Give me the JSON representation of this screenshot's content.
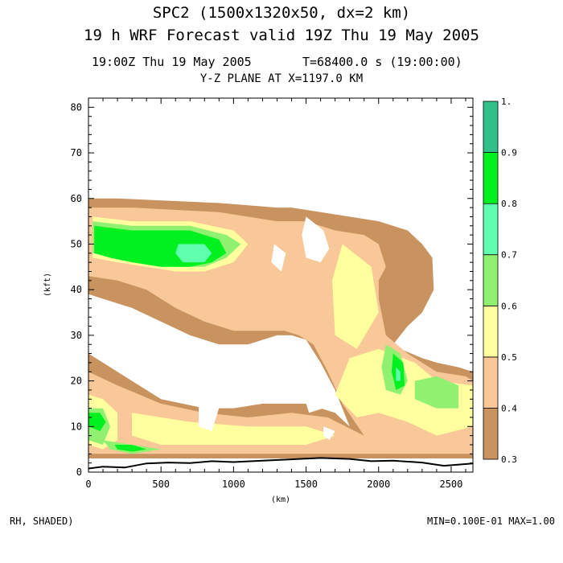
{
  "header": {
    "title_line1": "SPC2 (1500x1320x50, dx=2 km)",
    "title_line2": "19 h  WRF Forecast valid 19Z Thu 19 May 2005",
    "time_label": "19:00Z Thu 19 May 2005",
    "step_label": "T=68400.0 s (19:00:00)",
    "plane_label": "Y-Z PLANE AT X=1197.0 KM"
  },
  "footer": {
    "field_label": "RH, SHADED)",
    "range_label": "MIN=0.100E-01 MAX=1.00"
  },
  "chart_data": {
    "type": "heatmap",
    "field": "RH",
    "xlabel": "(km)",
    "ylabel": "(kft)",
    "xlim": [
      0,
      2650
    ],
    "ylim": [
      0,
      82
    ],
    "x_ticks": [
      0,
      500,
      1000,
      1500,
      2000,
      2500
    ],
    "y_ticks": [
      0,
      10,
      20,
      30,
      40,
      50,
      60,
      70,
      80
    ],
    "colorbar": {
      "levels": [
        0.3,
        0.4,
        0.5,
        0.6,
        0.7,
        0.8,
        0.9,
        1.0
      ],
      "tick_labels": [
        "0.3",
        "0.4",
        "0.5",
        "0.6",
        "0.7",
        "0.8",
        "0.9",
        "1."
      ],
      "colors": [
        "#c8935f",
        "#f8c898",
        "#ffffa0",
        "#90f070",
        "#60ffb0",
        "#00f020",
        "#30c088"
      ]
    },
    "min": 0.01,
    "max": 1.0,
    "terrain_height_kft": [
      [
        0,
        0.8
      ],
      [
        100,
        1.2
      ],
      [
        250,
        1.0
      ],
      [
        400,
        1.9
      ],
      [
        550,
        2.1
      ],
      [
        700,
        2.0
      ],
      [
        850,
        2.4
      ],
      [
        1000,
        2.2
      ],
      [
        1200,
        2.5
      ],
      [
        1400,
        2.8
      ],
      [
        1600,
        3.1
      ],
      [
        1800,
        2.9
      ],
      [
        1950,
        2.4
      ],
      [
        2100,
        2.5
      ],
      [
        2300,
        2.1
      ],
      [
        2450,
        1.4
      ],
      [
        2650,
        1.9
      ]
    ],
    "regions": [
      {
        "level": 0.3,
        "outline": [
          [
            0,
            60
          ],
          [
            200,
            60
          ],
          [
            900,
            59
          ],
          [
            1300,
            58
          ],
          [
            1400,
            58
          ],
          [
            1600,
            57
          ],
          [
            1800,
            56
          ],
          [
            2000,
            55
          ],
          [
            2200,
            53
          ],
          [
            2300,
            50
          ],
          [
            2370,
            47
          ],
          [
            2380,
            40
          ],
          [
            2300,
            35
          ],
          [
            2200,
            32
          ],
          [
            2100,
            28
          ],
          [
            2150,
            27
          ],
          [
            2300,
            25
          ],
          [
            2400,
            24
          ],
          [
            2550,
            23
          ],
          [
            2650,
            22
          ],
          [
            2650,
            3
          ],
          [
            0,
            3
          ],
          [
            0,
            26
          ],
          [
            100,
            24
          ],
          [
            300,
            20
          ],
          [
            500,
            16
          ],
          [
            800,
            14
          ],
          [
            1000,
            14
          ],
          [
            1200,
            15
          ],
          [
            1500,
            15
          ],
          [
            1700,
            13
          ],
          [
            1800,
            10
          ],
          [
            1700,
            18
          ],
          [
            1600,
            24
          ],
          [
            1500,
            29
          ],
          [
            1400,
            30
          ],
          [
            1300,
            30
          ],
          [
            1100,
            28
          ],
          [
            900,
            28
          ],
          [
            700,
            30
          ],
          [
            500,
            33
          ],
          [
            300,
            36
          ],
          [
            100,
            38
          ],
          [
            0,
            39
          ]
        ]
      },
      {
        "level": 0.3,
        "outline": [
          [
            0,
            9
          ],
          [
            300,
            5
          ],
          [
            700,
            5
          ],
          [
            1100,
            4
          ],
          [
            1500,
            4
          ],
          [
            1900,
            4
          ],
          [
            2300,
            4
          ],
          [
            2650,
            4
          ],
          [
            2650,
            3
          ],
          [
            0,
            3
          ]
        ]
      },
      {
        "level": 0.4,
        "outline": [
          [
            0,
            58
          ],
          [
            300,
            58
          ],
          [
            900,
            57
          ],
          [
            1300,
            55
          ],
          [
            1500,
            55
          ],
          [
            1700,
            53
          ],
          [
            1900,
            52
          ],
          [
            2000,
            50
          ],
          [
            2050,
            45
          ],
          [
            2000,
            42
          ],
          [
            2000,
            38
          ],
          [
            2050,
            30
          ],
          [
            2200,
            26
          ],
          [
            2400,
            22
          ],
          [
            2600,
            21
          ],
          [
            2650,
            20
          ],
          [
            2650,
            4
          ],
          [
            0,
            4
          ],
          [
            0,
            22
          ],
          [
            200,
            19
          ],
          [
            500,
            15
          ],
          [
            800,
            13
          ],
          [
            1100,
            12
          ],
          [
            1400,
            13
          ],
          [
            1650,
            12
          ],
          [
            1900,
            8
          ],
          [
            1750,
            15
          ],
          [
            1650,
            22
          ],
          [
            1550,
            28
          ],
          [
            1450,
            30
          ],
          [
            1350,
            31
          ],
          [
            1200,
            31
          ],
          [
            1000,
            31
          ],
          [
            800,
            33
          ],
          [
            600,
            36
          ],
          [
            400,
            40
          ],
          [
            200,
            42
          ],
          [
            0,
            43
          ]
        ]
      },
      {
        "level": 0.5,
        "outline": [
          [
            30,
            56
          ],
          [
            300,
            55
          ],
          [
            700,
            55
          ],
          [
            1000,
            53
          ],
          [
            1100,
            50
          ],
          [
            1000,
            46
          ],
          [
            800,
            44
          ],
          [
            600,
            44
          ],
          [
            400,
            45
          ],
          [
            200,
            46
          ],
          [
            30,
            47
          ]
        ]
      },
      {
        "level": 0.5,
        "outline": [
          [
            1750,
            50
          ],
          [
            1950,
            45
          ],
          [
            2000,
            35
          ],
          [
            1850,
            27
          ],
          [
            1700,
            30
          ],
          [
            1680,
            42
          ]
        ]
      },
      {
        "level": 0.5,
        "outline": [
          [
            1800,
            25
          ],
          [
            2000,
            27
          ],
          [
            2250,
            24
          ],
          [
            2400,
            20
          ],
          [
            2650,
            19
          ],
          [
            2650,
            10
          ],
          [
            2400,
            8
          ],
          [
            2200,
            11
          ],
          [
            2000,
            13
          ],
          [
            1850,
            12
          ],
          [
            1700,
            17
          ]
        ]
      },
      {
        "level": 0.5,
        "outline": [
          [
            0,
            17
          ],
          [
            100,
            16
          ],
          [
            200,
            13
          ],
          [
            200,
            7
          ],
          [
            100,
            5
          ],
          [
            0,
            6
          ]
        ]
      },
      {
        "level": 0.5,
        "outline": [
          [
            300,
            13
          ],
          [
            700,
            11
          ],
          [
            1100,
            10
          ],
          [
            1500,
            10
          ],
          [
            1700,
            8
          ],
          [
            1500,
            6
          ],
          [
            1000,
            6
          ],
          [
            500,
            6
          ],
          [
            300,
            8
          ]
        ]
      },
      {
        "level": 0.6,
        "outline": [
          [
            30,
            55
          ],
          [
            300,
            54
          ],
          [
            700,
            54
          ],
          [
            950,
            52
          ],
          [
            1050,
            50
          ],
          [
            950,
            47
          ],
          [
            800,
            45
          ],
          [
            600,
            45
          ],
          [
            400,
            46
          ],
          [
            200,
            47
          ],
          [
            30,
            48
          ]
        ]
      },
      {
        "level": 0.6,
        "outline": [
          [
            2050,
            28
          ],
          [
            2150,
            26
          ],
          [
            2200,
            20
          ],
          [
            2150,
            17
          ],
          [
            2050,
            18
          ],
          [
            2020,
            23
          ]
        ]
      },
      {
        "level": 0.6,
        "outline": [
          [
            2250,
            20
          ],
          [
            2400,
            21
          ],
          [
            2550,
            19
          ],
          [
            2550,
            14
          ],
          [
            2400,
            14
          ],
          [
            2250,
            16
          ]
        ]
      },
      {
        "level": 0.6,
        "outline": [
          [
            0,
            14
          ],
          [
            100,
            14
          ],
          [
            150,
            10
          ],
          [
            100,
            6
          ],
          [
            0,
            7
          ]
        ]
      },
      {
        "level": 0.6,
        "outline": [
          [
            100,
            7
          ],
          [
            300,
            6
          ],
          [
            500,
            5
          ],
          [
            300,
            4
          ],
          [
            150,
            5
          ]
        ]
      },
      {
        "level": 0.8,
        "outline": [
          [
            40,
            54
          ],
          [
            300,
            53
          ],
          [
            700,
            53
          ],
          [
            900,
            51
          ],
          [
            950,
            48
          ],
          [
            850,
            46
          ],
          [
            700,
            45
          ],
          [
            500,
            45
          ],
          [
            300,
            46
          ],
          [
            150,
            47
          ],
          [
            40,
            48
          ]
        ]
      },
      {
        "level": 0.8,
        "outline": [
          [
            2100,
            26
          ],
          [
            2170,
            24
          ],
          [
            2180,
            19
          ],
          [
            2120,
            18
          ],
          [
            2090,
            22
          ]
        ]
      },
      {
        "level": 0.8,
        "outline": [
          [
            0,
            13
          ],
          [
            80,
            13
          ],
          [
            120,
            11
          ],
          [
            80,
            9
          ],
          [
            0,
            10
          ]
        ]
      },
      {
        "level": 0.8,
        "outline": [
          [
            180,
            6
          ],
          [
            300,
            6
          ],
          [
            400,
            5
          ],
          [
            300,
            4.5
          ],
          [
            200,
            5
          ]
        ]
      },
      {
        "level": 0.7,
        "outline": [
          [
            620,
            50
          ],
          [
            800,
            50
          ],
          [
            850,
            48
          ],
          [
            800,
            46
          ],
          [
            650,
            46
          ],
          [
            600,
            48
          ]
        ]
      },
      {
        "level": 0.7,
        "outline": [
          [
            2120,
            23
          ],
          [
            2150,
            22
          ],
          [
            2150,
            20
          ],
          [
            2120,
            20
          ]
        ]
      }
    ],
    "holes": [
      {
        "outline": [
          [
            1500,
            56
          ],
          [
            1620,
            53
          ],
          [
            1660,
            49
          ],
          [
            1600,
            46
          ],
          [
            1500,
            47
          ],
          [
            1470,
            52
          ]
        ]
      },
      {
        "outline": [
          [
            1280,
            50
          ],
          [
            1360,
            48
          ],
          [
            1330,
            44
          ],
          [
            1260,
            46
          ]
        ]
      },
      {
        "outline": [
          [
            1550,
            20
          ],
          [
            1620,
            14
          ],
          [
            1520,
            13
          ],
          [
            1480,
            17
          ]
        ]
      },
      {
        "outline": [
          [
            760,
            15
          ],
          [
            900,
            14
          ],
          [
            850,
            9
          ],
          [
            760,
            10
          ]
        ]
      },
      {
        "outline": [
          [
            1620,
            10
          ],
          [
            1700,
            9
          ],
          [
            1660,
            7
          ],
          [
            1620,
            8
          ]
        ]
      }
    ]
  }
}
